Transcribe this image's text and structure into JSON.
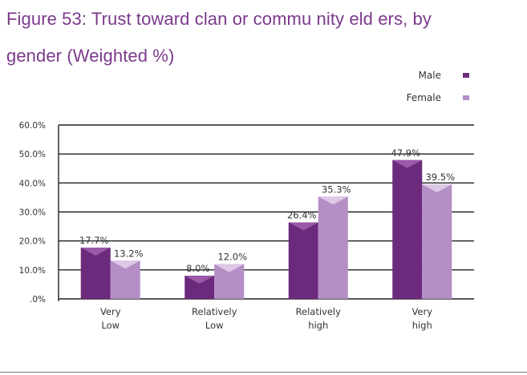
{
  "title_lines": [
    "Figure 53: Trust toward  clan or commu nity eld ers, by",
    "gender (Weighted %)"
  ],
  "chart_data": {
    "type": "bar",
    "title": "Figure 53: Trust toward clan or community elders, by gender (Weighted %)",
    "categories": [
      [
        "Very",
        "Low"
      ],
      [
        "Relatively",
        "Low"
      ],
      [
        "Relatively",
        "high"
      ],
      [
        "Very",
        "high"
      ]
    ],
    "series": [
      {
        "name": "Male",
        "values": [
          17.7,
          8.0,
          26.4,
          47.9
        ],
        "labels": [
          "17.7%",
          "8.0%",
          "26.4%",
          "47.9%"
        ],
        "color": "#6c2a7c",
        "highlight": "#9a5aa8"
      },
      {
        "name": "Female",
        "values": [
          13.2,
          12.0,
          35.3,
          39.5
        ],
        "labels": [
          "13.2%",
          "12.0%",
          "35.3%",
          "39.5%"
        ],
        "color": "#b58ec6",
        "highlight": "#dcc8e6"
      }
    ],
    "ylim": [
      0,
      60
    ],
    "yticks": [
      0,
      10,
      20,
      30,
      40,
      50,
      60
    ],
    "ytick_labels": [
      ".0%",
      "10.0%",
      "20.0%",
      "30.0%",
      "40.0%",
      "50.0%",
      "60.0%"
    ],
    "grid": true,
    "legend": "top-right",
    "xlabel": "",
    "ylabel": ""
  }
}
